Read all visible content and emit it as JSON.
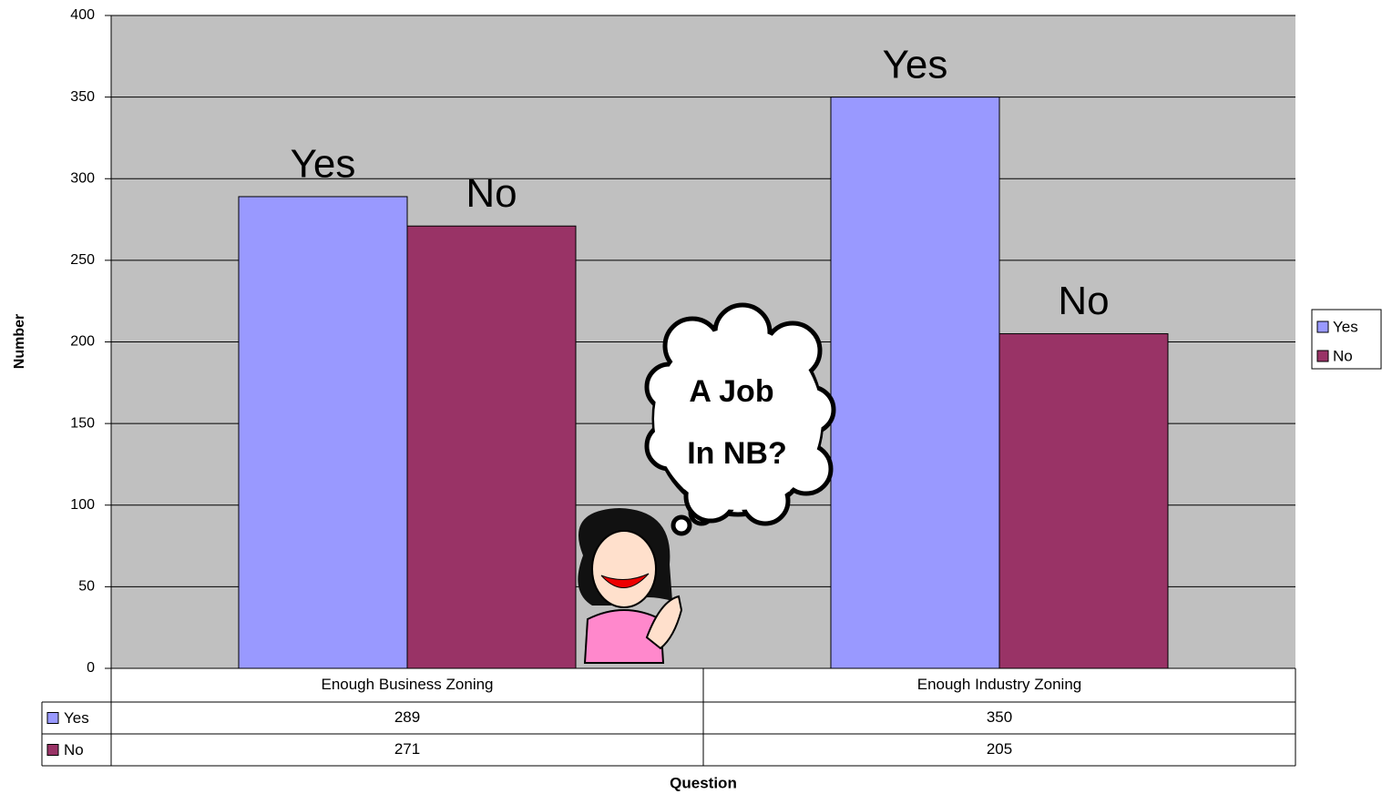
{
  "chart_data": {
    "type": "bar",
    "y_label": "Number",
    "x_label": "Question",
    "categories": [
      "Enough Business Zoning",
      "Enough Industry Zoning"
    ],
    "series": [
      {
        "name": "Yes",
        "color": "#9999ff",
        "values": [
          289,
          350
        ]
      },
      {
        "name": "No",
        "color": "#993366",
        "values": [
          271,
          205
        ]
      }
    ],
    "ylim": [
      0,
      400
    ],
    "yticks": [
      0,
      50,
      100,
      150,
      200,
      250,
      300,
      350,
      400
    ],
    "grid": true,
    "legend": "right",
    "data_table": true,
    "annotations": [
      "A Job",
      "In NB?"
    ]
  }
}
